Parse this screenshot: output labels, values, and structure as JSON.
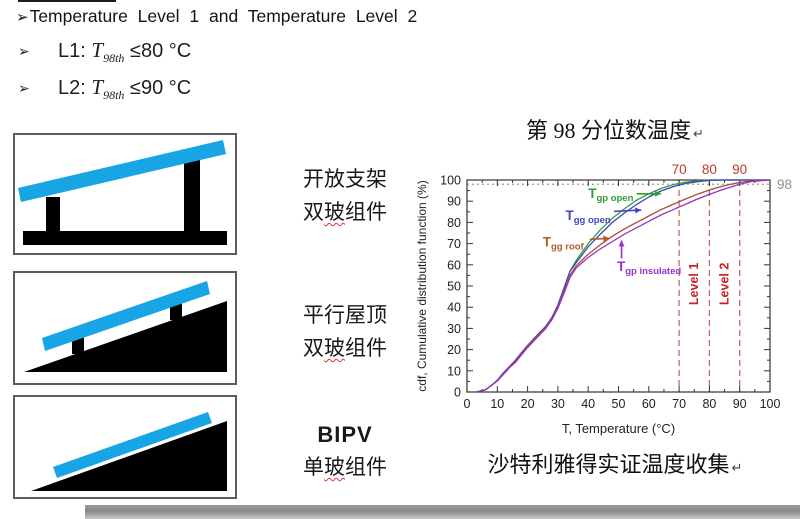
{
  "colors": {
    "panel_cyan": "#17a5e6",
    "structure_black": "#000000",
    "ref_num_red": "#c23b2b",
    "ref_line_red": "#c86a6a",
    "level_red": "#cc2020",
    "dotted_gray": "#9a9a9a"
  },
  "heading": {
    "bullet": "➢",
    "text": "Temperature Level 1 and Temperature Level 2"
  },
  "bullets": [
    {
      "bullet": "➢",
      "label": "L1:",
      "symbol": "T",
      "sub": "98th",
      "op": "≤",
      "value": "80",
      "unit": "°C"
    },
    {
      "bullet": "➢",
      "label": "L2:",
      "symbol": "T",
      "sub": "98th",
      "op": "≤",
      "value": "90",
      "unit": "°C"
    }
  ],
  "figures": [
    {
      "name": "open-rack",
      "line1": "开放支架",
      "line2_pre": "双",
      "line2_wavy": "玻",
      "line2_post": "组件"
    },
    {
      "name": "parallel-roof",
      "line1": "平行屋顶",
      "line2_pre": "双",
      "line2_wavy": "玻",
      "line2_post": "组件"
    },
    {
      "name": "bipv",
      "line1": "BIPV",
      "line2_pre": "单",
      "line2_wavy": "玻",
      "line2_post": "组件"
    }
  ],
  "chart_title": {
    "text": "第 98 分位数温度",
    "return_mark": "↵"
  },
  "chart_caption": {
    "text": "沙特利雅得实证温度收集",
    "return_mark": "↵"
  },
  "chart_data": {
    "type": "line",
    "title": "第 98 分位数温度",
    "xlabel": "T, Temperature (°C)",
    "ylabel": "cdf, Cumulative distribution function (%)",
    "xlim": [
      0,
      100
    ],
    "ylim": [
      0,
      100
    ],
    "x_ticks": [
      0,
      10,
      20,
      30,
      40,
      50,
      60,
      70,
      80,
      90,
      100
    ],
    "y_ticks": [
      0,
      10,
      20,
      30,
      40,
      50,
      60,
      70,
      80,
      90,
      100
    ],
    "grid": false,
    "legend_position": "inline-annotations",
    "reference_horizontal": {
      "y": 98,
      "label": "98"
    },
    "reference_verticals": [
      {
        "x": 70,
        "label": "70"
      },
      {
        "x": 80,
        "label": "80"
      },
      {
        "x": 90,
        "label": "90"
      }
    ],
    "level_labels": [
      {
        "text": "Level 1",
        "x": 75
      },
      {
        "text": "Level 2",
        "x": 85
      }
    ],
    "series": [
      {
        "name": "T_gp open",
        "color": "#2f9e33",
        "points": [
          [
            3,
            0
          ],
          [
            6,
            1
          ],
          [
            8,
            3
          ],
          [
            10,
            5.5
          ],
          [
            12,
            9
          ],
          [
            14,
            12
          ],
          [
            16,
            15
          ],
          [
            18,
            18.5
          ],
          [
            20,
            22
          ],
          [
            22,
            25
          ],
          [
            24,
            28
          ],
          [
            26,
            31
          ],
          [
            28,
            35
          ],
          [
            30,
            41
          ],
          [
            32,
            49
          ],
          [
            34,
            57
          ],
          [
            36,
            62
          ],
          [
            40,
            70
          ],
          [
            44,
            76.5
          ],
          [
            48,
            82
          ],
          [
            52,
            86.5
          ],
          [
            56,
            90.5
          ],
          [
            60,
            93.5
          ],
          [
            64,
            96
          ],
          [
            68,
            97.8
          ],
          [
            72,
            98.9
          ],
          [
            76,
            99.6
          ],
          [
            80,
            100
          ],
          [
            100,
            100
          ]
        ]
      },
      {
        "name": "T_gg open",
        "color": "#4343c8",
        "points": [
          [
            3,
            0
          ],
          [
            6,
            1
          ],
          [
            8,
            3
          ],
          [
            10,
            5.5
          ],
          [
            12,
            9
          ],
          [
            14,
            12
          ],
          [
            16,
            15
          ],
          [
            18,
            18.5
          ],
          [
            20,
            22
          ],
          [
            22,
            25
          ],
          [
            24,
            28
          ],
          [
            26,
            31
          ],
          [
            28,
            35
          ],
          [
            30,
            41
          ],
          [
            32,
            49
          ],
          [
            34,
            57
          ],
          [
            36,
            61
          ],
          [
            40,
            68.5
          ],
          [
            44,
            74.5
          ],
          [
            48,
            80
          ],
          [
            52,
            84.5
          ],
          [
            56,
            88.5
          ],
          [
            60,
            92
          ],
          [
            64,
            94.8
          ],
          [
            68,
            96.8
          ],
          [
            72,
            98.3
          ],
          [
            76,
            99.2
          ],
          [
            80,
            99.8
          ],
          [
            85,
            100
          ],
          [
            100,
            100
          ]
        ]
      },
      {
        "name": "T_gg roof",
        "color": "#a8502a",
        "points": [
          [
            3,
            0
          ],
          [
            6,
            1
          ],
          [
            8,
            3
          ],
          [
            10,
            5.3
          ],
          [
            12,
            8.5
          ],
          [
            14,
            11.7
          ],
          [
            16,
            14.5
          ],
          [
            18,
            18
          ],
          [
            20,
            21.5
          ],
          [
            22,
            24.5
          ],
          [
            24,
            27.5
          ],
          [
            26,
            30.5
          ],
          [
            28,
            34.5
          ],
          [
            30,
            40
          ],
          [
            32,
            47.5
          ],
          [
            34,
            55
          ],
          [
            36,
            59.5
          ],
          [
            40,
            65
          ],
          [
            44,
            69.5
          ],
          [
            48,
            73.5
          ],
          [
            52,
            77
          ],
          [
            56,
            80
          ],
          [
            60,
            83
          ],
          [
            64,
            86
          ],
          [
            68,
            88.5
          ],
          [
            72,
            91
          ],
          [
            76,
            93.3
          ],
          [
            80,
            95.3
          ],
          [
            84,
            97
          ],
          [
            88,
            98.3
          ],
          [
            92,
            99.3
          ],
          [
            96,
            99.8
          ],
          [
            100,
            100
          ]
        ]
      },
      {
        "name": "T_gp insulated",
        "color": "#9a30c9",
        "points": [
          [
            3,
            0
          ],
          [
            6,
            1
          ],
          [
            8,
            3
          ],
          [
            10,
            5.2
          ],
          [
            12,
            8.3
          ],
          [
            14,
            11.4
          ],
          [
            16,
            14
          ],
          [
            18,
            17.5
          ],
          [
            20,
            21
          ],
          [
            22,
            24
          ],
          [
            24,
            27
          ],
          [
            26,
            30
          ],
          [
            28,
            34
          ],
          [
            30,
            39.5
          ],
          [
            32,
            46.5
          ],
          [
            34,
            54
          ],
          [
            36,
            58.5
          ],
          [
            40,
            63.5
          ],
          [
            44,
            67.5
          ],
          [
            48,
            71
          ],
          [
            52,
            74.5
          ],
          [
            56,
            77.5
          ],
          [
            60,
            80.5
          ],
          [
            64,
            83.5
          ],
          [
            68,
            86
          ],
          [
            72,
            88.5
          ],
          [
            76,
            91
          ],
          [
            80,
            93.2
          ],
          [
            84,
            95.3
          ],
          [
            88,
            97.1
          ],
          [
            90,
            98
          ],
          [
            94,
            99.3
          ],
          [
            100,
            100
          ]
        ]
      }
    ],
    "annotations": [
      {
        "main": "T",
        "sub": "gp open",
        "color": "#2f9e33",
        "label_x": 40,
        "label_y": 93.5,
        "arrow": [
          56,
          93.5,
          64,
          93.5
        ]
      },
      {
        "main": "T",
        "sub": "gg open",
        "color": "#4343c8",
        "label_x": 32.5,
        "label_y": 83,
        "arrow": [
          48.5,
          85.2,
          57.5,
          85.8
        ]
      },
      {
        "main": "T",
        "sub": "gg roof",
        "color": "#b25a2a",
        "label_x": 25,
        "label_y": 70.5,
        "arrow": [
          40.5,
          72,
          47,
          72.5
        ]
      },
      {
        "main": "T",
        "sub": "gp insulated",
        "color": "#9a30c9",
        "label_x": 49.5,
        "label_y": 59,
        "arrow": [
          51,
          63,
          51,
          71.5
        ]
      }
    ]
  }
}
